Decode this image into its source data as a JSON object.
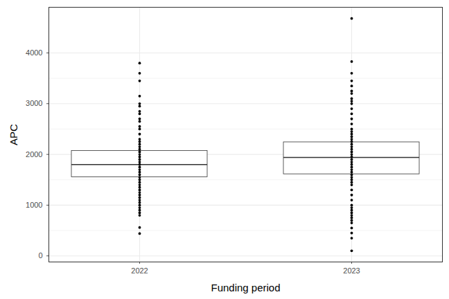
{
  "chart_data": {
    "type": "box",
    "x_label": "Funding period",
    "y_label": "APC",
    "categories": [
      "2022",
      "2023"
    ],
    "q1": [
      1550,
      1610
    ],
    "median": [
      1800,
      1940
    ],
    "q3": [
      2070,
      2240
    ],
    "points": [
      [
        440,
        560,
        800,
        850,
        900,
        950,
        1000,
        1050,
        1100,
        1150,
        1200,
        1250,
        1300,
        1350,
        1400,
        1450,
        1500,
        1550,
        1600,
        1650,
        1700,
        1750,
        1800,
        1850,
        1900,
        1950,
        2000,
        2050,
        2100,
        2150,
        2200,
        2250,
        2300,
        2400,
        2500,
        2550,
        2650,
        2700,
        2800,
        2850,
        2950,
        3000,
        3150,
        3450,
        3600,
        3800
      ],
      [
        100,
        350,
        450,
        550,
        650,
        700,
        750,
        800,
        850,
        900,
        950,
        1000,
        1100,
        1200,
        1300,
        1400,
        1450,
        1500,
        1550,
        1600,
        1650,
        1700,
        1750,
        1800,
        1850,
        1900,
        1950,
        2000,
        2050,
        2100,
        2150,
        2200,
        2250,
        2300,
        2350,
        2400,
        2450,
        2500,
        2600,
        2700,
        2800,
        2900,
        3000,
        3050,
        3100,
        3200,
        3250,
        3350,
        3450,
        3600,
        3830,
        4680
      ]
    ],
    "ylim": [
      -120,
      4900
    ],
    "yticks": [
      0,
      1000,
      2000,
      3000,
      4000
    ],
    "grid": true,
    "color": "#000000"
  }
}
